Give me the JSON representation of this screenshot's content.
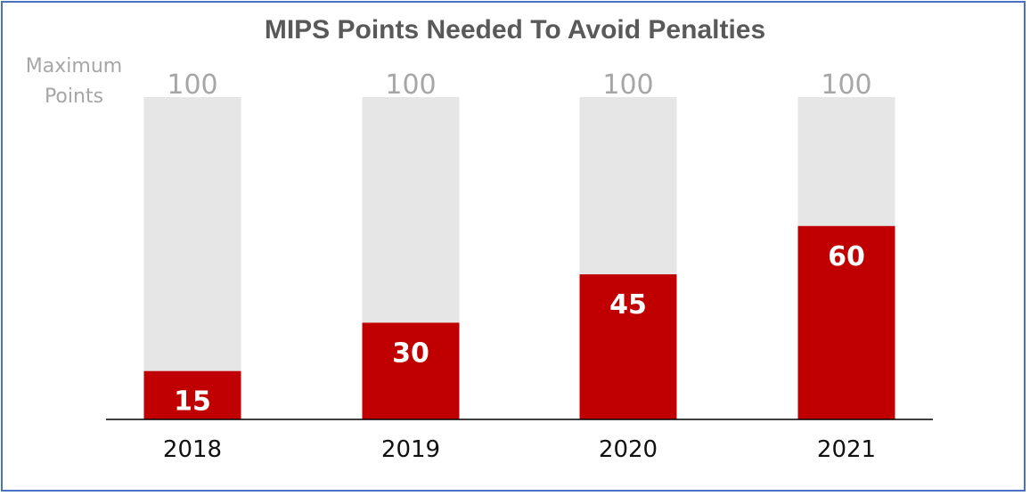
{
  "chart_data": {
    "type": "bar",
    "title": "MIPS Points Needed To Avoid Penalties",
    "side_label_lines": [
      "Maximum",
      "Points"
    ],
    "categories": [
      "2018",
      "2019",
      "2020",
      "2021"
    ],
    "series": [
      {
        "values": [
          100,
          100,
          100,
          100
        ],
        "color": "#e6e6e6"
      },
      {
        "values": [
          15,
          30,
          45,
          60
        ],
        "color": "#c00000"
      }
    ],
    "max_labels": [
      "100",
      "100",
      "100",
      "100"
    ],
    "value_labels": [
      "15",
      "30",
      "45",
      "60"
    ],
    "ylim": [
      0,
      100
    ],
    "grid": false,
    "legend": "none"
  }
}
